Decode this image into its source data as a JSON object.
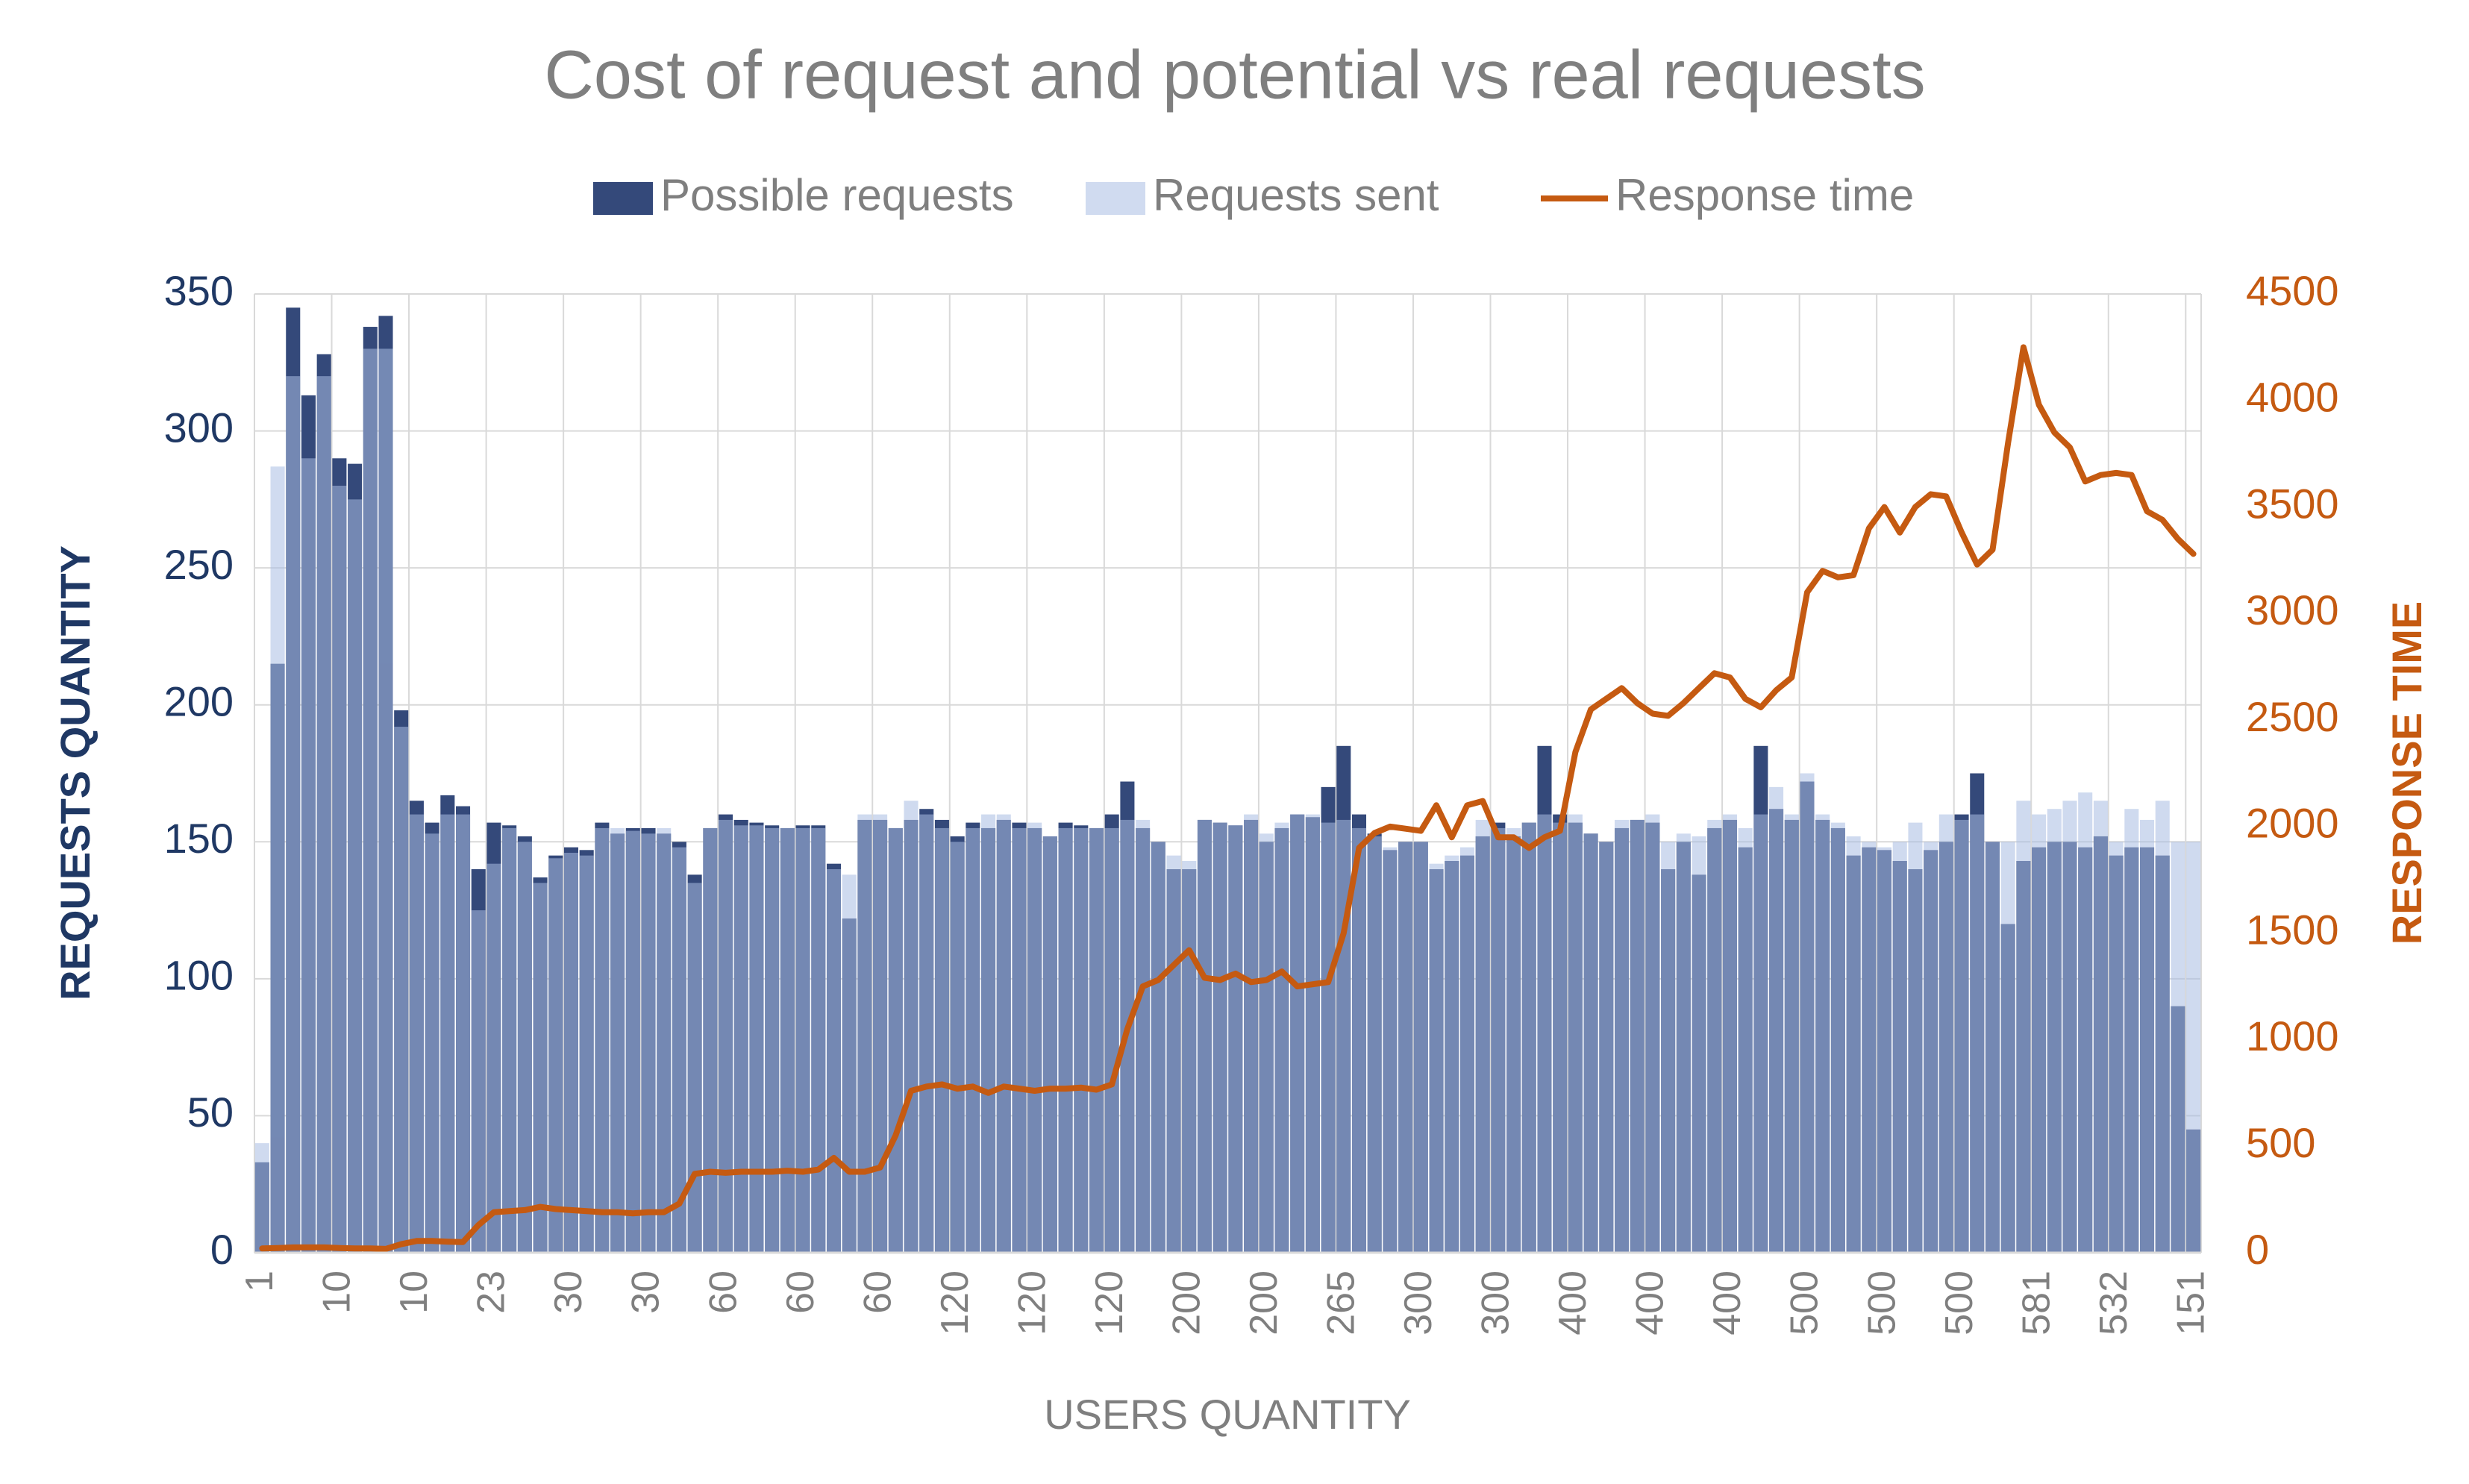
{
  "chart_data": {
    "type": "combo",
    "title": "Cost of request and potential vs real requests",
    "xlabel": "USERS QUANTITY",
    "ylabel": "REQUESTS QUANTITY",
    "y2label": "RESPONSE TIME",
    "legend": "top",
    "grid": true,
    "categories": [
      "1",
      null,
      null,
      null,
      null,
      "10",
      null,
      null,
      null,
      null,
      "10",
      null,
      null,
      null,
      null,
      "23",
      null,
      null,
      null,
      null,
      "30",
      null,
      null,
      null,
      null,
      "30",
      null,
      null,
      null,
      null,
      "60",
      null,
      null,
      null,
      null,
      "60",
      null,
      null,
      null,
      null,
      "60",
      null,
      null,
      null,
      null,
      "120",
      null,
      null,
      null,
      null,
      "120",
      null,
      null,
      null,
      null,
      "120",
      null,
      null,
      null,
      null,
      "200",
      null,
      null,
      null,
      null,
      "200",
      null,
      null,
      null,
      null,
      "265",
      null,
      null,
      null,
      null,
      "300",
      null,
      null,
      null,
      null,
      "300",
      null,
      null,
      null,
      null,
      "400",
      null,
      null,
      null,
      null,
      "400",
      null,
      null,
      null,
      null,
      "400",
      null,
      null,
      null,
      null,
      "500",
      null,
      null,
      null,
      null,
      "500",
      null,
      null,
      null,
      null,
      "500",
      null,
      null,
      null,
      null,
      "581",
      null,
      null,
      null,
      null,
      "532",
      null,
      null,
      null,
      null,
      "151"
    ],
    "series": [
      {
        "name": "Possible requests",
        "type": "bar",
        "color": "#34497a",
        "values": [
          33,
          215,
          345,
          313,
          328,
          290,
          288,
          338,
          342,
          198,
          165,
          157,
          167,
          163,
          140,
          157,
          156,
          152,
          137,
          145,
          148,
          147,
          157,
          153,
          155,
          155,
          153,
          150,
          138,
          155,
          160,
          158,
          157,
          156,
          155,
          156,
          156,
          142,
          122,
          158,
          158,
          155,
          158,
          162,
          158,
          152,
          157,
          155,
          158,
          157,
          155,
          152,
          157,
          156,
          155,
          160,
          172,
          155,
          150,
          140,
          140,
          158,
          157,
          156,
          158,
          150,
          155,
          160,
          159,
          170,
          185,
          160,
          153,
          147,
          150,
          150,
          140,
          143,
          145,
          152,
          157,
          152,
          157,
          185,
          160,
          157,
          153,
          150,
          155,
          158,
          157,
          140,
          150,
          138,
          155,
          158,
          148,
          185,
          162,
          158,
          172,
          158,
          155,
          145,
          148,
          147,
          143,
          140,
          147,
          150,
          160,
          175,
          150,
          120,
          143,
          148,
          150,
          150,
          148,
          152,
          145,
          148,
          148,
          145,
          90,
          45
        ]
      },
      {
        "name": "Requests sent",
        "type": "bar",
        "color": "#a9bde3",
        "values": [
          40,
          287,
          320,
          290,
          320,
          280,
          275,
          330,
          330,
          192,
          160,
          153,
          160,
          160,
          125,
          142,
          155,
          150,
          135,
          144,
          146,
          145,
          155,
          155,
          154,
          153,
          155,
          148,
          135,
          155,
          158,
          156,
          156,
          155,
          155,
          155,
          155,
          140,
          138,
          160,
          160,
          155,
          165,
          160,
          155,
          150,
          155,
          160,
          160,
          155,
          157,
          152,
          155,
          155,
          155,
          155,
          158,
          158,
          150,
          145,
          143,
          158,
          157,
          156,
          160,
          153,
          157,
          160,
          160,
          157,
          158,
          155,
          152,
          148,
          150,
          150,
          142,
          145,
          148,
          158,
          155,
          155,
          157,
          160,
          157,
          160,
          153,
          150,
          158,
          158,
          160,
          150,
          153,
          152,
          158,
          160,
          155,
          160,
          170,
          160,
          175,
          160,
          157,
          152,
          150,
          148,
          150,
          157,
          150,
          160,
          158,
          160,
          150,
          150,
          165,
          160,
          162,
          165,
          168,
          165,
          150,
          162,
          158,
          165,
          150,
          150
        ]
      },
      {
        "name": "Response time",
        "type": "line",
        "axis": "y2",
        "color": "#c55a11",
        "values": [
          20,
          22,
          25,
          25,
          25,
          22,
          20,
          20,
          18,
          40,
          55,
          55,
          52,
          50,
          130,
          190,
          195,
          200,
          215,
          205,
          200,
          195,
          190,
          190,
          185,
          190,
          190,
          230,
          370,
          380,
          375,
          380,
          380,
          380,
          385,
          380,
          390,
          445,
          380,
          380,
          400,
          550,
          760,
          780,
          790,
          770,
          780,
          750,
          780,
          770,
          760,
          770,
          770,
          775,
          765,
          790,
          1050,
          1250,
          1280,
          1350,
          1420,
          1290,
          1280,
          1310,
          1270,
          1280,
          1320,
          1250,
          1260,
          1270,
          1500,
          1900,
          1970,
          2000,
          1990,
          1980,
          2100,
          1950,
          2100,
          2120,
          1950,
          1950,
          1900,
          1950,
          1980,
          2350,
          2550,
          2600,
          2650,
          2580,
          2530,
          2520,
          2580,
          2650,
          2720,
          2700,
          2600,
          2560,
          2640,
          2700,
          3100,
          3200,
          3170,
          3180,
          3400,
          3500,
          3380,
          3500,
          3560,
          3550,
          3380,
          3230,
          3300,
          3800,
          4250,
          3980,
          3850,
          3780,
          3620,
          3650,
          3660,
          3650,
          3480,
          3440,
          3350,
          3280
        ]
      }
    ],
    "ylim": [
      0,
      350
    ],
    "yticks": [
      0,
      50,
      100,
      150,
      200,
      250,
      300,
      350
    ],
    "y2lim": [
      0,
      4500
    ],
    "y2ticks": [
      0,
      500,
      1000,
      1500,
      2000,
      2500,
      3000,
      3500,
      4000,
      4500
    ]
  }
}
